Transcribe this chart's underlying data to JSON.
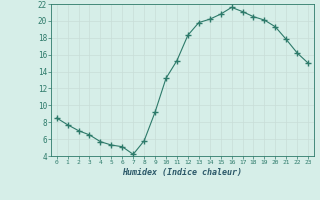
{
  "x": [
    0,
    1,
    2,
    3,
    4,
    5,
    6,
    7,
    8,
    9,
    10,
    11,
    12,
    13,
    14,
    15,
    16,
    17,
    18,
    19,
    20,
    21,
    22,
    23
  ],
  "y": [
    8.5,
    7.7,
    7.0,
    6.5,
    5.7,
    5.3,
    5.1,
    4.2,
    5.8,
    9.2,
    13.2,
    15.3,
    18.3,
    19.8,
    20.2,
    20.8,
    21.6,
    21.1,
    20.5,
    20.1,
    19.3,
    17.8,
    16.2,
    15.0
  ],
  "line_color": "#2d7a6a",
  "marker": "+",
  "marker_size": 4,
  "bg_color": "#d6eee8",
  "grid_color": "#c8ddd8",
  "xlabel": "Humidex (Indice chaleur)",
  "ylim": [
    4,
    22
  ],
  "xlim": [
    -0.5,
    23.5
  ],
  "yticks": [
    4,
    6,
    8,
    10,
    12,
    14,
    16,
    18,
    20,
    22
  ],
  "xticks": [
    0,
    1,
    2,
    3,
    4,
    5,
    6,
    7,
    8,
    9,
    10,
    11,
    12,
    13,
    14,
    15,
    16,
    17,
    18,
    19,
    20,
    21,
    22,
    23
  ],
  "tick_color": "#2d7a6a",
  "label_color": "#2d5a6a"
}
